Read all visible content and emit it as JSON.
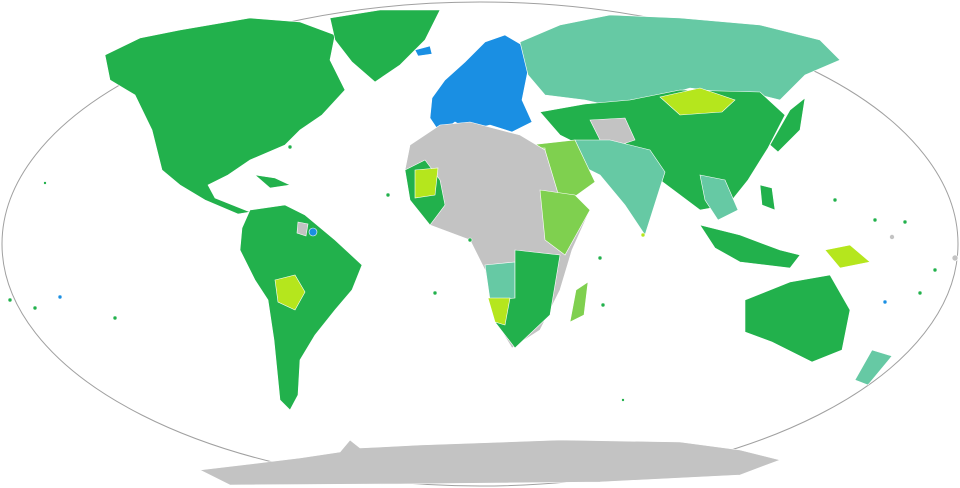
{
  "map": {
    "colors": {
      "background": "#ffffff",
      "outline": "#a0a0a0",
      "dark_green": "#22b14c",
      "teal": "#66c9a4",
      "light_green": "#7fd04f",
      "yellow_green": "#b5e61d",
      "blue": "#1a8fe3",
      "grey": "#c3c3c3",
      "navy": "#0b2a7a"
    }
  }
}
